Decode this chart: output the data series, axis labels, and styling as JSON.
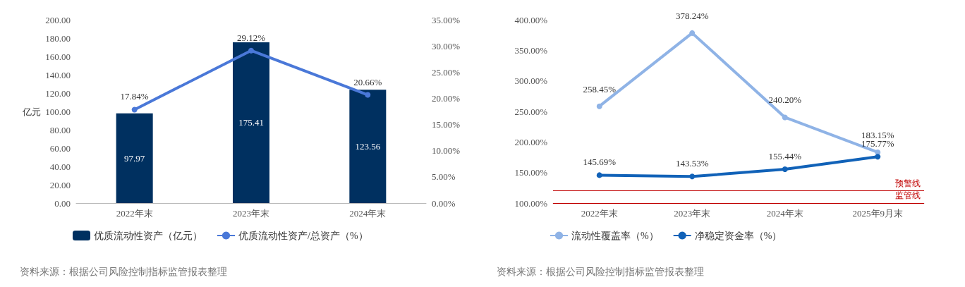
{
  "chart_data": [
    {
      "type": "bar",
      "ylabel": "亿元",
      "categories": [
        "2022年末",
        "2023年末",
        "2024年末"
      ],
      "series": [
        {
          "name": "优质流动性资产（亿元）",
          "color": "#003060",
          "values": [
            97.97,
            175.41,
            123.56
          ],
          "value_labels": [
            "97.97",
            "175.41",
            "123.56"
          ]
        },
        {
          "name": "优质流动性资产/总资产（%）",
          "type": "line",
          "axis": "y2",
          "color": "#4a78d8",
          "values": [
            17.84,
            29.12,
            20.66
          ],
          "value_labels": [
            "17.84%",
            "29.12%",
            "20.66%"
          ]
        }
      ],
      "ylim": [
        0,
        200
      ],
      "yticks": [
        {
          "value": 0,
          "label": "0.00"
        },
        {
          "value": 20,
          "label": "20.00"
        },
        {
          "value": 40,
          "label": "40.00"
        },
        {
          "value": 60,
          "label": "60.00"
        },
        {
          "value": 80,
          "label": "80.00"
        },
        {
          "value": 100,
          "label": "100.00"
        },
        {
          "value": 120,
          "label": "120.00"
        },
        {
          "value": 140,
          "label": "140.00"
        },
        {
          "value": 160,
          "label": "160.00"
        },
        {
          "value": 180,
          "label": "180.00"
        },
        {
          "value": 200,
          "label": "200.00"
        }
      ],
      "y2lim": [
        0,
        35
      ],
      "y2ticks": [
        {
          "value": 0,
          "label": "0.00%"
        },
        {
          "value": 5,
          "label": "5.00%"
        },
        {
          "value": 10,
          "label": "10.00%"
        },
        {
          "value": 15,
          "label": "15.00%"
        },
        {
          "value": 20,
          "label": "20.00%"
        },
        {
          "value": 25,
          "label": "25.00%"
        },
        {
          "value": 30,
          "label": "30.00%"
        },
        {
          "value": 35,
          "label": "35.00%"
        }
      ],
      "grid": false,
      "legend": "bottom",
      "marker": "circle",
      "annotations": [
        "资料来源：根据公司风险控制指标监管报表整理"
      ]
    },
    {
      "type": "line",
      "categories": [
        "2022年末",
        "2023年末",
        "2024年末",
        "2025年9月末"
      ],
      "series": [
        {
          "name": "流动性覆盖率（%）",
          "color": "#8fb3e6",
          "values": [
            258.45,
            378.24,
            240.2,
            183.15
          ],
          "value_labels": [
            "258.45%",
            "378.24%",
            "240.20%",
            "183.15%"
          ]
        },
        {
          "name": "净稳定资金率（%）",
          "color": "#1162b8",
          "values": [
            145.69,
            143.53,
            155.44,
            175.77
          ],
          "value_labels": [
            "145.69%",
            "143.53%",
            "155.44%",
            "175.77%"
          ]
        }
      ],
      "ylim": [
        100,
        400
      ],
      "yticks": [
        {
          "value": 100,
          "label": "100.00%"
        },
        {
          "value": 150,
          "label": "150.00%"
        },
        {
          "value": 200,
          "label": "200.00%"
        },
        {
          "value": 250,
          "label": "250.00%"
        },
        {
          "value": 300,
          "label": "300.00%"
        },
        {
          "value": 350,
          "label": "350.00%"
        },
        {
          "value": 400,
          "label": "400.00%"
        }
      ],
      "ref_lines": [
        {
          "axis": "y",
          "value": 120,
          "label": "预警线",
          "color": "#c00000"
        },
        {
          "axis": "y",
          "value": 100,
          "label": "监管线",
          "color": "#c00000"
        }
      ],
      "grid": false,
      "legend": "bottom",
      "marker": "circle",
      "annotations": [
        "资料来源：根据公司风险控制指标监管报表整理"
      ]
    }
  ]
}
